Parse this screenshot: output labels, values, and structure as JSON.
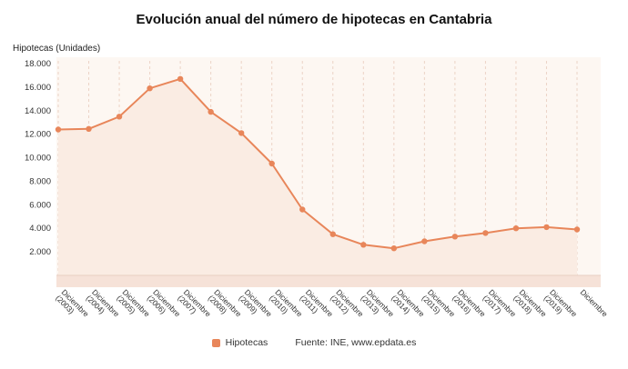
{
  "chart_data": {
    "type": "line",
    "title": "Evolución anual del número de hipotecas en Cantabria",
    "ylabel": "Hipotecas (Unidades)",
    "series_name": "Hipotecas",
    "source": "Fuente: INE, www.epdata.es",
    "categories": [
      "Diciembre (2003)",
      "Diciembre (2004)",
      "Diciembre (2005)",
      "Diciembre (2006)",
      "Diciembre (2007)",
      "Diciembre (2008)",
      "Diciembre (2009)",
      "Diciembre (2010)",
      "Diciembre (2011)",
      "Diciembre (2012)",
      "Diciembre (2013)",
      "Diciembre (2014)",
      "Diciembre (2015)",
      "Diciembre (2016)",
      "Diciembre (2017)",
      "Diciembre (2018)",
      "Diciembre (2019)",
      "Diciembre"
    ],
    "values": [
      12400,
      12450,
      13500,
      15900,
      16700,
      13900,
      12100,
      9500,
      5600,
      3500,
      2600,
      2300,
      2900,
      3300,
      3600,
      4000,
      4100,
      3900
    ],
    "ylim": [
      0,
      18000
    ],
    "yticks": [
      2000,
      4000,
      6000,
      8000,
      10000,
      12000,
      14000,
      16000,
      18000
    ],
    "legend_position": "bottom",
    "grid": "vertical-dashed",
    "colors": {
      "line": "#e8865a",
      "marker": "#e8865a",
      "area": "#faece3",
      "plot_bg": "#fdf7f2",
      "band": "#f6e2d8",
      "grid": "#ecd3c6",
      "axis": "#e8cfc2",
      "text": "#333333"
    }
  }
}
